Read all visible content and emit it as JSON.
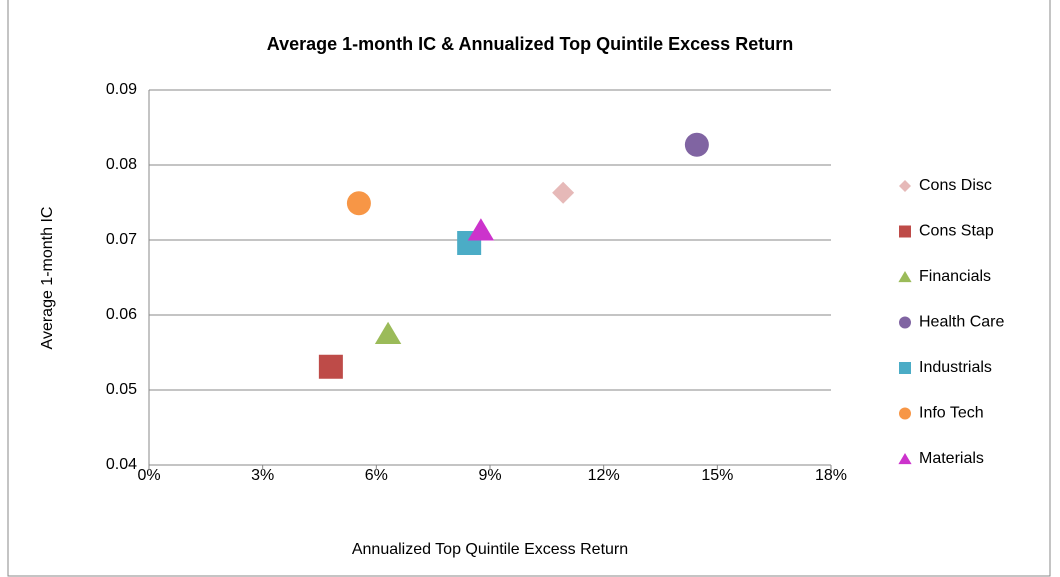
{
  "chart_data": {
    "type": "scatter",
    "title": "Average 1-month IC & Annualized Top Quintile Excess Return",
    "x_label": "Annualized Top Quintile Excess Return",
    "y_label": "Average 1-month IC",
    "series": [
      {
        "name": "Cons Disc",
        "color": "#e6b9b8",
        "marker": "diamond",
        "x": [
          10.93
        ],
        "values": [
          0.0763
        ]
      },
      {
        "name": "Cons Stap",
        "color": "#be4b48",
        "marker": "square",
        "x": [
          4.8
        ],
        "values": [
          0.0531
        ]
      },
      {
        "name": "Financials",
        "color": "#9bbb59",
        "marker": "triangle",
        "x": [
          6.31
        ],
        "values": [
          0.0575
        ]
      },
      {
        "name": "Health Care",
        "color": "#8064a2",
        "marker": "circle",
        "x": [
          14.46
        ],
        "values": [
          0.0827
        ]
      },
      {
        "name": "Industrials",
        "color": "#4bacc6",
        "marker": "square",
        "x": [
          8.45
        ],
        "values": [
          0.0696
        ]
      },
      {
        "name": "Info Tech",
        "color": "#f79646",
        "marker": "circle",
        "x": [
          5.54
        ],
        "values": [
          0.0749
        ]
      },
      {
        "name": "Materials",
        "color": "#cc33cc",
        "marker": "triangle",
        "x": [
          8.76
        ],
        "values": [
          0.0713
        ]
      }
    ],
    "xlim": [
      0,
      18
    ],
    "xticks": [
      {
        "value": 0,
        "label": "0%"
      },
      {
        "value": 3,
        "label": "3%"
      },
      {
        "value": 6,
        "label": "6%"
      },
      {
        "value": 9,
        "label": "9%"
      },
      {
        "value": 12,
        "label": "12%"
      },
      {
        "value": 15,
        "label": "15%"
      },
      {
        "value": 18,
        "label": "18%"
      }
    ],
    "ylim": [
      0.04,
      0.09
    ],
    "yticks": [
      0.04,
      0.05,
      0.06,
      0.07,
      0.08,
      0.09
    ],
    "grid": true,
    "legend": "right"
  }
}
